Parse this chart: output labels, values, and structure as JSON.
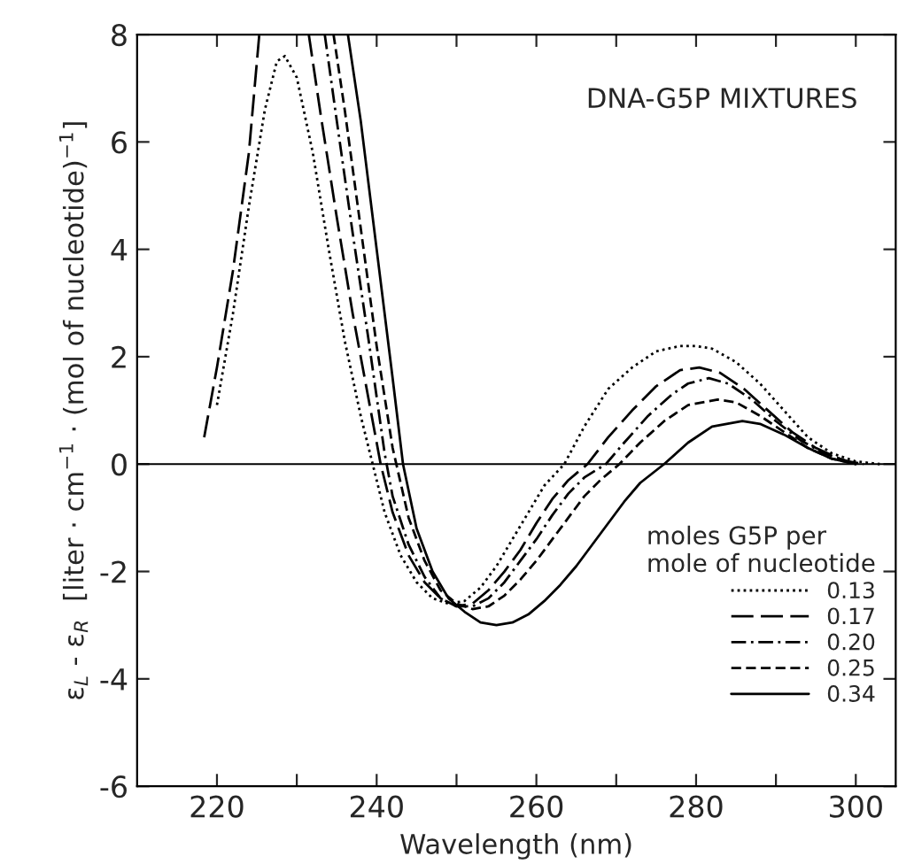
{
  "chart_data": {
    "type": "line",
    "title": "DNA-G5P MIXTURES",
    "xlabel": "Wavelength (nm)",
    "ylabel": "ε$_{L}$ - ε$_{R}$  [liter · cm$^{−1}$ · (mol of nucleotide)$^{−1}$]",
    "legend_title": "moles G5P per\nmole of nucleotide",
    "legend": "bottom right",
    "xlim": [
      210,
      305
    ],
    "ylim": [
      -6,
      8
    ],
    "xticks": [
      220,
      {
        "value": 230,
        "label": null
      },
      240,
      {
        "value": 250,
        "label": null
      },
      260,
      {
        "value": 270,
        "label": null
      },
      280,
      {
        "value": 290,
        "label": null
      },
      300
    ],
    "yticks": [
      -6,
      -4,
      -2,
      0,
      2,
      4,
      6,
      8
    ],
    "ref_lines": [
      {
        "axis": "y",
        "value": 0,
        "color": "#000000"
      }
    ],
    "series": [
      {
        "name": "0.13",
        "color": "#000000",
        "line_style": "dotted",
        "x": [
          220,
          222,
          224,
          226,
          227.5,
          228.5,
          230,
          232,
          234,
          236,
          238,
          239.5,
          241,
          243,
          245,
          247,
          249,
          251,
          253,
          255,
          257,
          259,
          261,
          263.5,
          266,
          269,
          272,
          275,
          278,
          280,
          282,
          285,
          288,
          291,
          294,
          297,
          300,
          303
        ],
        "values": [
          1.1,
          2.8,
          4.8,
          6.6,
          7.5,
          7.6,
          7.2,
          5.8,
          4.0,
          2.3,
          0.9,
          0.0,
          -0.9,
          -1.7,
          -2.2,
          -2.5,
          -2.6,
          -2.55,
          -2.3,
          -1.9,
          -1.4,
          -0.9,
          -0.4,
          0.0,
          0.7,
          1.4,
          1.8,
          2.1,
          2.2,
          2.2,
          2.15,
          1.9,
          1.5,
          1.0,
          0.5,
          0.2,
          0.05,
          0.0
        ]
      },
      {
        "name": "0.17",
        "color": "#000000",
        "line_style": "longdash",
        "x": [
          218.4,
          220,
          222,
          224,
          225.3,
          228,
          231.5,
          233,
          235,
          237,
          239,
          240.5,
          242,
          244,
          246,
          248,
          250,
          252,
          254,
          256,
          258,
          260,
          262,
          264,
          266.4,
          269,
          272,
          275,
          278,
          280.4,
          283,
          286,
          289,
          292,
          295,
          298,
          300
        ],
        "values": [
          0.5,
          1.8,
          3.6,
          5.8,
          8.0,
          null,
          8.0,
          6.5,
          4.6,
          2.8,
          1.2,
          0.0,
          -0.9,
          -1.7,
          -2.2,
          -2.5,
          -2.65,
          -2.6,
          -2.35,
          -2.0,
          -1.6,
          -1.1,
          -0.65,
          -0.3,
          0.0,
          0.5,
          1.0,
          1.45,
          1.75,
          1.8,
          1.7,
          1.4,
          1.0,
          0.6,
          0.3,
          0.1,
          0.0
        ]
      },
      {
        "name": "0.20",
        "color": "#000000",
        "line_style": "dashdot",
        "x": [
          233.5,
          235,
          237,
          239,
          241,
          242,
          244,
          246,
          248,
          250,
          252,
          254,
          256,
          258,
          260,
          262,
          264,
          266,
          268.7,
          271,
          274,
          277,
          279,
          281.6,
          284,
          287,
          290,
          293,
          296,
          299,
          301
        ],
        "values": [
          8.0,
          6.4,
          4.3,
          2.3,
          0.2,
          -0.6,
          -1.5,
          -2.1,
          -2.5,
          -2.65,
          -2.65,
          -2.5,
          -2.2,
          -1.8,
          -1.4,
          -0.95,
          -0.55,
          -0.25,
          0.0,
          0.4,
          0.9,
          1.3,
          1.5,
          1.6,
          1.5,
          1.2,
          0.8,
          0.45,
          0.2,
          0.05,
          0.0
        ]
      },
      {
        "name": "0.25",
        "color": "#000000",
        "line_style": "dashed",
        "x": [
          234.6,
          236,
          238,
          240,
          242,
          244,
          246,
          248,
          250,
          252,
          254,
          256,
          258,
          260,
          262,
          264,
          266,
          268,
          270.4,
          273,
          276,
          279,
          282.7,
          285,
          288,
          291,
          294,
          297,
          300
        ],
        "values": [
          8.0,
          6.6,
          4.4,
          2.2,
          0.3,
          -1.0,
          -1.8,
          -2.35,
          -2.6,
          -2.7,
          -2.65,
          -2.45,
          -2.15,
          -1.8,
          -1.4,
          -1.0,
          -0.6,
          -0.3,
          0.0,
          0.4,
          0.8,
          1.1,
          1.2,
          1.15,
          0.9,
          0.6,
          0.3,
          0.1,
          0.0
        ]
      },
      {
        "name": "0.34",
        "color": "#000000",
        "line_style": "solid",
        "x": [
          236.4,
          238,
          240,
          242,
          243.3,
          245,
          247,
          249,
          251,
          253,
          255,
          257,
          259,
          261,
          263,
          265,
          267,
          269,
          271,
          273,
          276,
          279,
          282,
          285.8,
          288,
          291,
          294,
          297,
          300
        ],
        "values": [
          8.0,
          6.4,
          4.0,
          1.6,
          0.0,
          -1.2,
          -2.0,
          -2.5,
          -2.75,
          -2.95,
          -3.0,
          -2.95,
          -2.8,
          -2.55,
          -2.25,
          -1.9,
          -1.5,
          -1.1,
          -0.7,
          -0.35,
          0.0,
          0.4,
          0.7,
          0.8,
          0.75,
          0.55,
          0.3,
          0.1,
          0.0
        ]
      }
    ]
  }
}
